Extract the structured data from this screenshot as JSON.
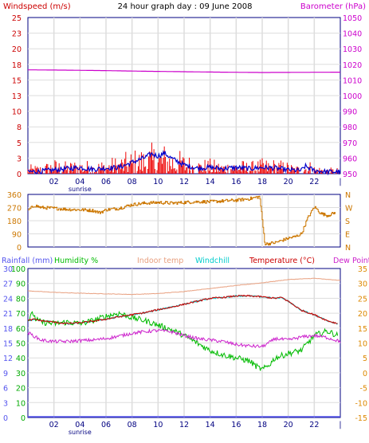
{
  "header": {
    "title": "24 hour graph day : 09 June 2008",
    "left_label": "Windspeed (m/s)",
    "right_label": "Barometer (hPa)"
  },
  "x_axis": {
    "tick_labels": [
      "02",
      "04",
      "06",
      "08",
      "10",
      "12",
      "14",
      "16",
      "18",
      "20",
      "22"
    ],
    "sunrise_label": "sunrise"
  },
  "colors": {
    "windspeed": "#ee0000",
    "windavg": "#0000cc",
    "barometer": "#cc00cc",
    "direction": "#cc7700",
    "rainfall": "#5555ee",
    "humidity": "#00bb00",
    "indoor": "#e8a080",
    "windchill": "#00cccc",
    "temperature": "#cc0000",
    "dewpoint": "#cc22cc",
    "grid": "#dddddd",
    "frame": "#000080"
  },
  "chart_data": [
    {
      "type": "line",
      "name": "wind-baro",
      "x_range": [
        0,
        24
      ],
      "left_axis": {
        "label": "Windspeed (m/s)",
        "ticks": [
          "25",
          "23",
          "20",
          "18",
          "15",
          "13",
          "10",
          "8",
          "5",
          "3",
          "0"
        ],
        "range": [
          0,
          25
        ]
      },
      "right_axis": {
        "label": "Barometer (hPa)",
        "ticks": [
          "1050",
          "1040",
          "1030",
          "1020",
          "1010",
          "1000",
          "990",
          "980",
          "970",
          "960",
          "950"
        ],
        "range": [
          950,
          1050
        ]
      },
      "barometer": {
        "x": [
          0,
          3,
          6,
          9,
          12,
          15,
          18,
          21,
          24
        ],
        "y": [
          1016.5,
          1016.3,
          1016.0,
          1015.6,
          1015.3,
          1015.0,
          1014.8,
          1014.9,
          1015.0
        ]
      },
      "wind_gust_envelope": {
        "x": [
          0,
          1,
          2,
          3,
          4,
          5,
          6,
          7,
          8,
          9,
          9.5,
          10,
          10.5,
          11,
          12,
          13,
          14,
          15,
          16,
          17,
          18,
          19,
          20,
          20.5,
          21,
          21.5,
          22,
          23,
          24
        ],
        "y": [
          1.5,
          1.5,
          2.5,
          2,
          2.5,
          2,
          2.5,
          3,
          4,
          4.5,
          5,
          5,
          5,
          4.5,
          3.5,
          2.5,
          2.5,
          2,
          2.5,
          2,
          2.5,
          2.5,
          2,
          1.5,
          1.5,
          2.5,
          1.5,
          1,
          1
        ]
      },
      "wind_avg": {
        "x": [
          0,
          1,
          2,
          3,
          4,
          5,
          6,
          7,
          8,
          9,
          9.5,
          10,
          10.5,
          11,
          12,
          13,
          14,
          15,
          16,
          17,
          18,
          19,
          20,
          21,
          21.3,
          22,
          23,
          24
        ],
        "y": [
          0.3,
          0.4,
          0.6,
          0.8,
          1.0,
          0.7,
          0.9,
          1.0,
          1.8,
          2.6,
          3.2,
          2.8,
          3.3,
          2.5,
          1.4,
          0.9,
          1.0,
          0.8,
          1.0,
          0.8,
          1.0,
          0.9,
          0.6,
          0.5,
          1.2,
          0.5,
          0.3,
          0.3
        ]
      }
    },
    {
      "type": "line",
      "name": "direction",
      "x_range": [
        0,
        24
      ],
      "left_axis": {
        "ticks": [
          "360",
          "270",
          "180",
          "90",
          "0"
        ],
        "range": [
          0,
          360
        ]
      },
      "right_axis": {
        "ticks": [
          "N",
          "W",
          "S",
          "E",
          "N"
        ]
      },
      "direction": {
        "x": [
          0,
          0.5,
          1,
          2,
          3,
          4,
          5,
          5.5,
          6,
          7,
          8,
          9,
          10,
          11,
          12,
          13,
          14,
          15,
          16,
          17,
          17.8,
          18,
          18.2,
          19,
          20,
          20.5,
          21,
          21.5,
          22,
          22.5,
          23,
          23.6
        ],
        "y": [
          250,
          285,
          270,
          265,
          258,
          255,
          250,
          235,
          255,
          265,
          290,
          300,
          305,
          300,
          305,
          310,
          310,
          315,
          320,
          330,
          345,
          180,
          20,
          30,
          60,
          70,
          90,
          200,
          275,
          230,
          215,
          235
        ]
      }
    },
    {
      "type": "line",
      "name": "climate",
      "x_range": [
        0,
        24
      ],
      "rainfall_axis": {
        "label": "Rainfall (mm)",
        "ticks": [
          "30",
          "27",
          "24",
          "21",
          "18",
          "15",
          "12",
          "9",
          "6",
          "3",
          "0"
        ],
        "range": [
          0,
          30
        ]
      },
      "humidity_axis": {
        "label": "Humidity %",
        "ticks": [
          "100",
          "90",
          "80",
          "70",
          "60",
          "50",
          "40",
          "30",
          "20",
          "10",
          "0"
        ],
        "range": [
          0,
          100
        ]
      },
      "temperature_axis": {
        "label": "Temperature (°C)",
        "ticks": [
          "35",
          "30",
          "25",
          "20",
          "15",
          "10",
          "5",
          "0",
          "-5",
          "-10",
          "-15"
        ],
        "range": [
          -15,
          35
        ]
      },
      "series_labels": {
        "indoor": "Indoor temp",
        "windchill": "Windchill",
        "dewpoint": "Dew Point"
      },
      "rainfall": {
        "x": [
          0,
          24
        ],
        "y": [
          0,
          0
        ]
      },
      "indoor_temp": {
        "x": [
          0,
          2,
          4,
          6,
          8,
          10,
          12,
          14,
          16,
          18,
          20,
          22,
          24
        ],
        "y": [
          27.5,
          27.0,
          26.7,
          26.5,
          26.3,
          26.6,
          27.3,
          28.3,
          29.3,
          30.2,
          31.3,
          31.7,
          31.0
        ]
      },
      "temperature": {
        "x": [
          0,
          0.5,
          1,
          2,
          3,
          4,
          5,
          6,
          7,
          8,
          9,
          10,
          11,
          12,
          13,
          14,
          15,
          16,
          17,
          18,
          19,
          19.5,
          20,
          21,
          22,
          23,
          23.8
        ],
        "y": [
          17.5,
          18.0,
          17.5,
          17.0,
          16.5,
          16.8,
          17.3,
          18.0,
          18.8,
          19.5,
          20.2,
          21.2,
          22.0,
          23.0,
          24.0,
          25.0,
          25.3,
          25.8,
          25.8,
          25.5,
          25.0,
          25.3,
          24.0,
          21.0,
          19.5,
          17.5,
          16.5
        ]
      },
      "windchill": {
        "x": [
          0,
          0.5,
          1,
          2,
          3,
          4,
          5,
          6,
          7,
          8,
          9,
          10,
          11,
          12,
          13,
          14,
          15,
          16,
          17,
          18,
          19,
          19.5,
          20,
          21,
          22,
          23,
          23.8
        ],
        "y": [
          17.5,
          18.0,
          17.5,
          17.0,
          16.5,
          16.8,
          17.3,
          18.0,
          18.8,
          19.5,
          20.2,
          21.2,
          22.0,
          23.0,
          24.0,
          25.0,
          25.3,
          25.8,
          25.8,
          25.5,
          25.0,
          25.3,
          24.0,
          21.0,
          19.5,
          17.5,
          16.5
        ]
      },
      "humidity": {
        "x": [
          0,
          0.4,
          0.6,
          1,
          2,
          3,
          4,
          5,
          6,
          7,
          8,
          9,
          10,
          11,
          12,
          13,
          14,
          15,
          16,
          17,
          17.6,
          18,
          18.5,
          19,
          20,
          21,
          22,
          23,
          23.8
        ],
        "y": [
          65,
          70,
          66,
          64,
          63,
          64,
          63,
          65,
          68,
          70,
          67,
          65,
          62,
          59,
          55,
          50,
          45,
          42,
          40,
          38,
          34,
          32,
          35,
          40,
          43,
          45,
          55,
          58,
          55
        ]
      },
      "dewpoint": {
        "x": [
          0,
          1,
          2,
          3,
          4,
          5,
          6,
          7,
          8,
          9,
          10,
          11,
          12,
          13,
          14,
          15,
          16,
          17,
          18,
          18.5,
          19,
          20,
          21,
          22,
          23,
          24
        ],
        "y": [
          13.5,
          11.0,
          10.5,
          10.5,
          10.8,
          11.0,
          11.5,
          12.3,
          13.3,
          13.8,
          14.2,
          13.8,
          12.5,
          11.5,
          11.0,
          10.5,
          9.5,
          9.0,
          8.8,
          10.0,
          11.5,
          11.0,
          12.0,
          12.5,
          11.8,
          10.5
        ]
      }
    }
  ]
}
